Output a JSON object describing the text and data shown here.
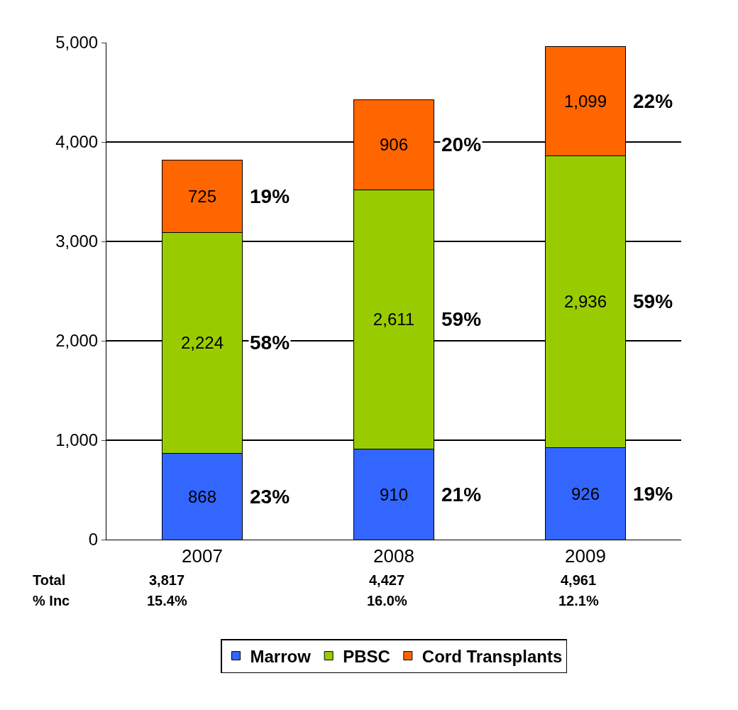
{
  "chart_data": {
    "type": "bar",
    "stacked": true,
    "categories": [
      "2007",
      "2008",
      "2009"
    ],
    "series": [
      {
        "name": "Marrow",
        "color": "#3366ff",
        "values": [
          868,
          910,
          926
        ],
        "value_labels": [
          "868",
          "910",
          "926"
        ]
      },
      {
        "name": "PBSC",
        "color": "#99cc00",
        "values": [
          2224,
          2611,
          2936
        ],
        "value_labels": [
          "2,224",
          "2,611",
          "2,936"
        ]
      },
      {
        "name": "Cord Transplants",
        "color": "#ff6600",
        "values": [
          725,
          906,
          1099
        ],
        "value_labels": [
          "725",
          "906",
          "1,099"
        ]
      }
    ],
    "totals": [
      "3,817",
      "4,427",
      "4,961"
    ],
    "ylim": [
      0,
      5000
    ],
    "yticks": [
      {
        "value": 0,
        "label": "0"
      },
      {
        "value": 1000,
        "label": "1,000"
      },
      {
        "value": 2000,
        "label": "2,000"
      },
      {
        "value": 3000,
        "label": "3,000"
      },
      {
        "value": 4000,
        "label": "4,000"
      },
      {
        "value": 5000,
        "label": "5,000"
      }
    ],
    "grid": "y",
    "legend": "bottom",
    "annotations": [
      "23%",
      "58%",
      "19%",
      "21%",
      "59%",
      "20%",
      "19%",
      "59%",
      "22%",
      "Total",
      "% Inc",
      "15.4%",
      "16.0%",
      "12.1%"
    ]
  }
}
